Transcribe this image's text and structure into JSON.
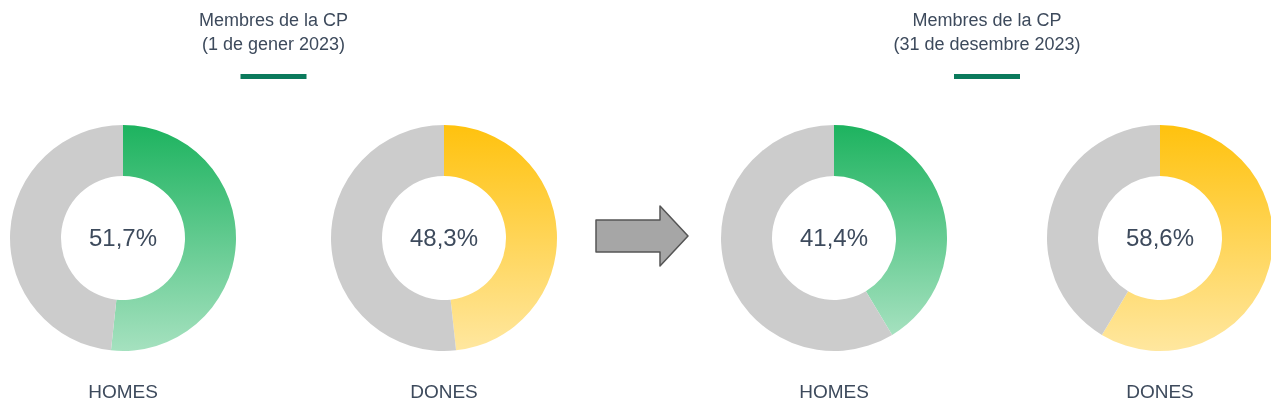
{
  "chart_data": [
    {
      "type": "donut",
      "title": "Membres de la CP\n(1 de gener 2023)",
      "xlabel": "HOMES",
      "categories": [
        null,
        null
      ],
      "values": [
        51.7,
        48.3
      ],
      "colors": [
        "#1db35f",
        "#cccccc"
      ],
      "value_labels": [
        "51,7%",
        null
      ]
    },
    {
      "type": "donut",
      "xlabel": "DONES",
      "categories": [
        null,
        null
      ],
      "values": [
        48.3,
        51.7
      ],
      "colors": [
        "#ffc20e",
        "#cccccc"
      ],
      "value_labels": [
        "48,3%",
        null
      ]
    },
    {
      "type": "donut",
      "title": "Membres de la CP\n(31 de desembre 2023)",
      "xlabel": "HOMES",
      "categories": [
        null,
        null
      ],
      "values": [
        41.4,
        58.6
      ],
      "colors": [
        "#1db35f",
        "#cccccc"
      ],
      "value_labels": [
        "41,4%",
        null
      ]
    },
    {
      "type": "donut",
      "xlabel": "DONES",
      "categories": [
        null,
        null
      ],
      "values": [
        58.6,
        41.4
      ],
      "colors": [
        "#ffc20e",
        "#cccccc"
      ],
      "value_labels": [
        "58,6%",
        null
      ]
    }
  ]
}
